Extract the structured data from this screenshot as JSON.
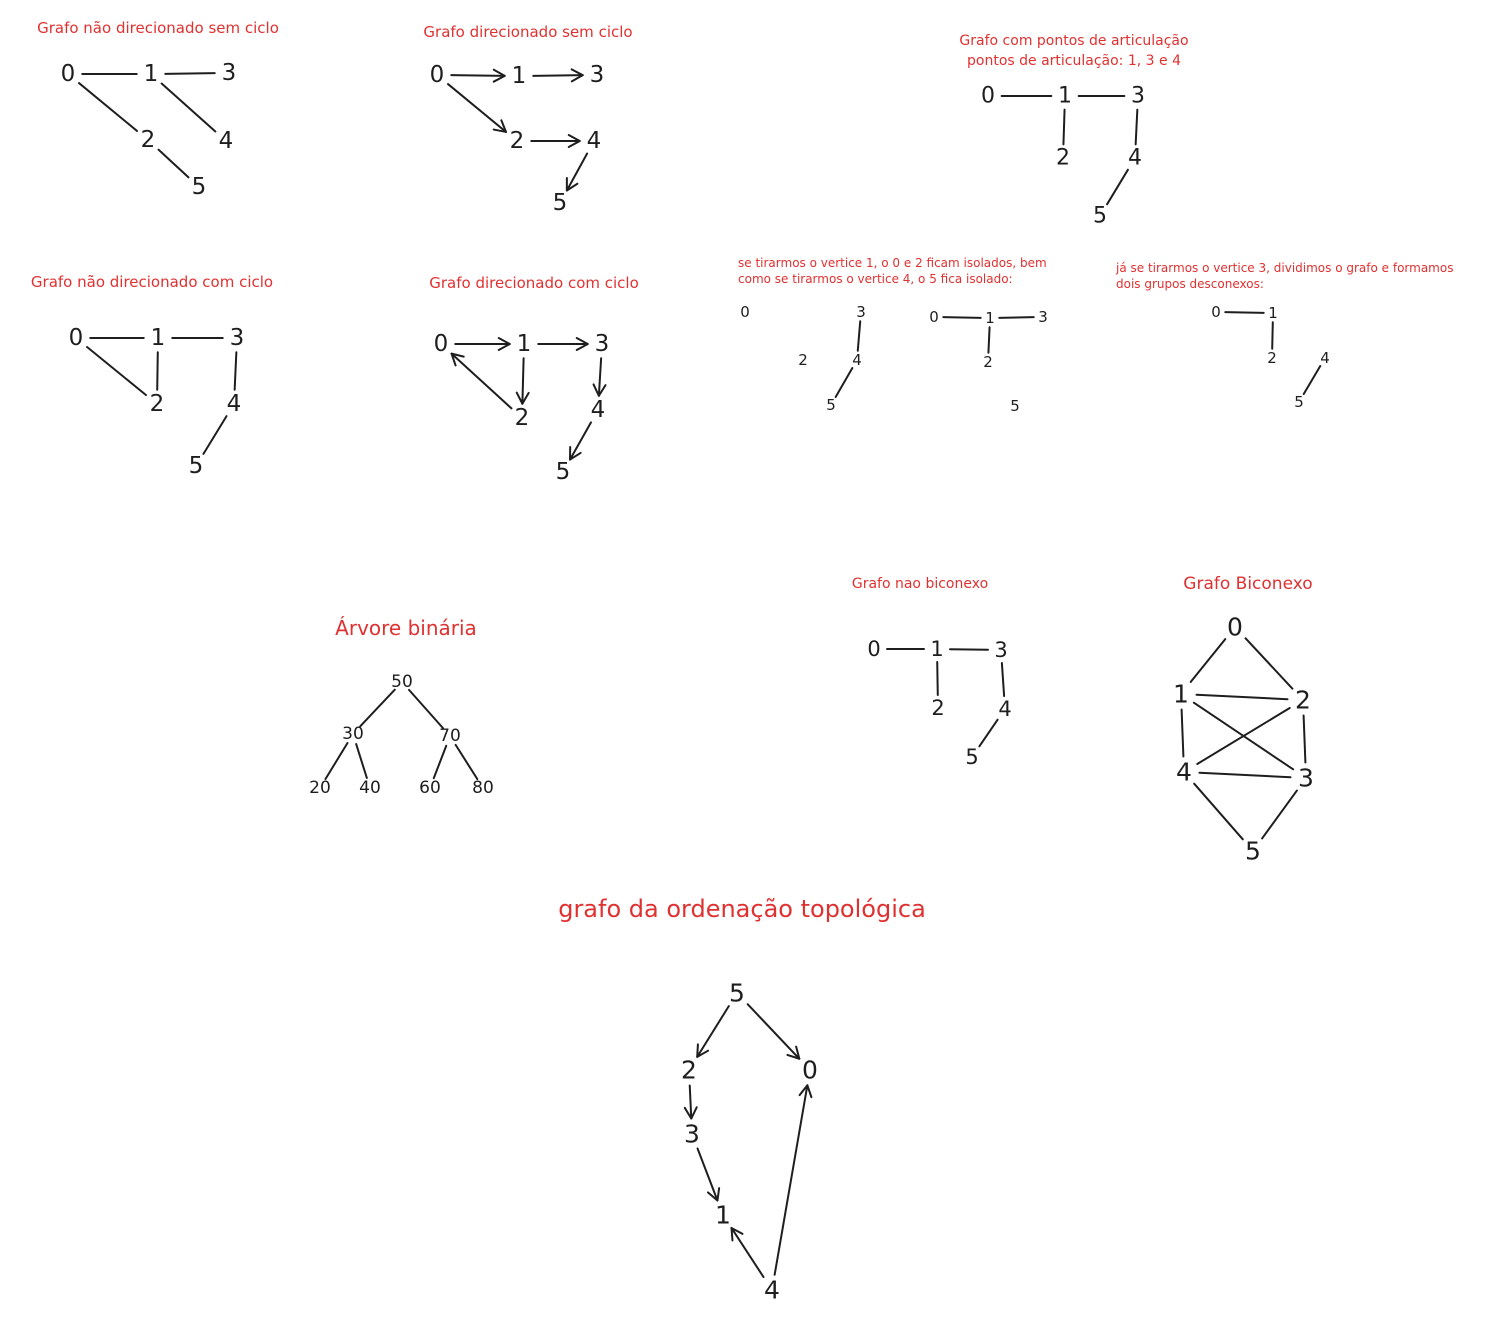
{
  "colors": {
    "title": "#e03131",
    "ink": "#1e1e1e"
  },
  "diagrams": [
    {
      "key": "g1",
      "title": [
        "Grafo não direcionado sem ciclo"
      ],
      "directed": false,
      "nodes": [
        "0",
        "1",
        "2",
        "3",
        "4",
        "5"
      ],
      "edges": [
        [
          "0",
          "1"
        ],
        [
          "1",
          "3"
        ],
        [
          "0",
          "2"
        ],
        [
          "1",
          "4"
        ],
        [
          "2",
          "5"
        ]
      ]
    },
    {
      "key": "g2",
      "title": [
        "Grafo direcionado sem ciclo"
      ],
      "directed": true,
      "nodes": [
        "0",
        "1",
        "2",
        "3",
        "4",
        "5"
      ],
      "edges": [
        [
          "0",
          "1"
        ],
        [
          "1",
          "3"
        ],
        [
          "0",
          "2"
        ],
        [
          "2",
          "4"
        ],
        [
          "4",
          "5"
        ]
      ]
    },
    {
      "key": "g3",
      "title": [
        "Grafo com pontos de articulação",
        "pontos de articulação: 1, 3 e 4"
      ],
      "directed": false,
      "nodes": [
        "0",
        "1",
        "2",
        "3",
        "4",
        "5"
      ],
      "edges": [
        [
          "0",
          "1"
        ],
        [
          "1",
          "3"
        ],
        [
          "1",
          "2"
        ],
        [
          "3",
          "4"
        ],
        [
          "4",
          "5"
        ]
      ]
    },
    {
      "key": "g4",
      "title": [
        "Grafo não direcionado com ciclo"
      ],
      "directed": false,
      "nodes": [
        "0",
        "1",
        "2",
        "3",
        "4",
        "5"
      ],
      "edges": [
        [
          "0",
          "1"
        ],
        [
          "1",
          "3"
        ],
        [
          "1",
          "2"
        ],
        [
          "0",
          "2"
        ],
        [
          "3",
          "4"
        ],
        [
          "4",
          "5"
        ]
      ]
    },
    {
      "key": "g5",
      "title": [
        "Grafo direcionado com ciclo"
      ],
      "directed": true,
      "nodes": [
        "0",
        "1",
        "2",
        "3",
        "4",
        "5"
      ],
      "edges": [
        [
          "0",
          "1"
        ],
        [
          "1",
          "3"
        ],
        [
          "1",
          "2"
        ],
        [
          "2",
          "0"
        ],
        [
          "3",
          "4"
        ],
        [
          "4",
          "5"
        ]
      ]
    },
    {
      "key": "g6",
      "title": [
        "se tirarmos o vertice 1, o 0 e 2 ficam isolados, bem",
        "como se tirarmos o vertice 4, o 5 fica isolado:"
      ],
      "directed": false,
      "nodes": [
        "0",
        "2",
        "3",
        "4",
        "5",
        "0",
        "1",
        "3",
        "2",
        "5"
      ],
      "edges": [
        [
          2,
          3
        ],
        [
          3,
          4
        ],
        [
          5,
          6
        ],
        [
          6,
          7
        ],
        [
          6,
          8
        ]
      ]
    },
    {
      "key": "g7",
      "title": [
        "já se tirarmos o vertice 3, dividimos o grafo e formamos",
        "dois grupos desconexos:"
      ],
      "directed": false,
      "nodes": [
        "0",
        "1",
        "2",
        "4",
        "5"
      ],
      "edges": [
        [
          "0",
          "1"
        ],
        [
          "1",
          "2"
        ],
        [
          "4",
          "5"
        ]
      ]
    },
    {
      "key": "tree",
      "title": [
        "Árvore binária"
      ],
      "directed": false,
      "nodes": [
        "50",
        "30",
        "70",
        "20",
        "40",
        "60",
        "80"
      ],
      "edges": [
        [
          "50",
          "30"
        ],
        [
          "50",
          "70"
        ],
        [
          "30",
          "20"
        ],
        [
          "30",
          "40"
        ],
        [
          "70",
          "60"
        ],
        [
          "70",
          "80"
        ]
      ]
    },
    {
      "key": "g8",
      "title": [
        "Grafo nao biconexo"
      ],
      "directed": false,
      "nodes": [
        "0",
        "1",
        "2",
        "3",
        "4",
        "5"
      ],
      "edges": [
        [
          "0",
          "1"
        ],
        [
          "1",
          "3"
        ],
        [
          "1",
          "2"
        ],
        [
          "3",
          "4"
        ],
        [
          "4",
          "5"
        ]
      ]
    },
    {
      "key": "g9",
      "title": [
        "Grafo Biconexo"
      ],
      "directed": false,
      "nodes": [
        "0",
        "1",
        "2",
        "3",
        "4",
        "5"
      ],
      "edges": [
        [
          "0",
          "1"
        ],
        [
          "0",
          "2"
        ],
        [
          "1",
          "2"
        ],
        [
          "1",
          "4"
        ],
        [
          "1",
          "3"
        ],
        [
          "2",
          "4"
        ],
        [
          "2",
          "3"
        ],
        [
          "4",
          "3"
        ],
        [
          "4",
          "5"
        ],
        [
          "3",
          "5"
        ]
      ]
    },
    {
      "key": "topo",
      "title": [
        "grafo da ordenação topológica"
      ],
      "directed": true,
      "nodes": [
        "5",
        "2",
        "0",
        "3",
        "1",
        "4"
      ],
      "edges": [
        [
          "5",
          "2"
        ],
        [
          "5",
          "0"
        ],
        [
          "2",
          "3"
        ],
        [
          "3",
          "1"
        ],
        [
          "4",
          "1"
        ],
        [
          "4",
          "0"
        ]
      ]
    }
  ]
}
